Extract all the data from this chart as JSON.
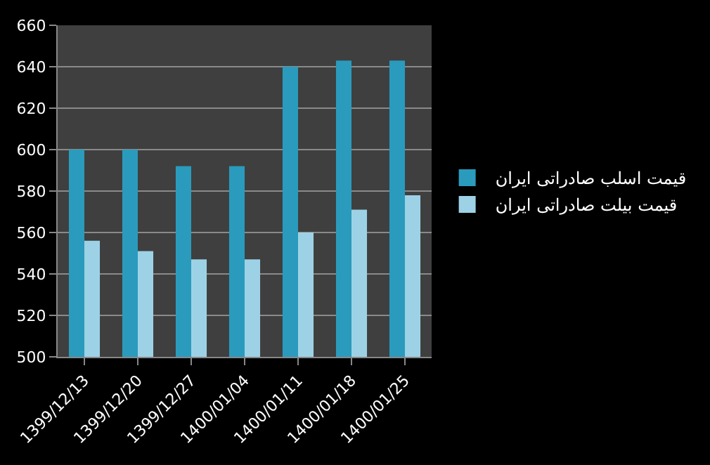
{
  "chart_data": {
    "type": "bar",
    "categories": [
      "1399/12/13",
      "1399/12/20",
      "1399/12/27",
      "1400/01/04",
      "1400/01/11",
      "1400/01/18",
      "1400/01/25"
    ],
    "series": [
      {
        "name": "قیمت اسلب صادراتی ایران",
        "color": "#2a9bbd",
        "values": [
          600,
          600,
          592,
          592,
          640,
          643,
          643
        ]
      },
      {
        "name": "قیمت بیلت صادراتی ایران",
        "color": "#9dd2e6",
        "values": [
          556,
          551,
          547,
          547,
          560,
          571,
          578
        ]
      }
    ],
    "ylim": [
      500,
      660
    ],
    "yticks": [
      500,
      520,
      540,
      560,
      580,
      600,
      620,
      640,
      660
    ],
    "grid": "y",
    "legend": "right"
  }
}
